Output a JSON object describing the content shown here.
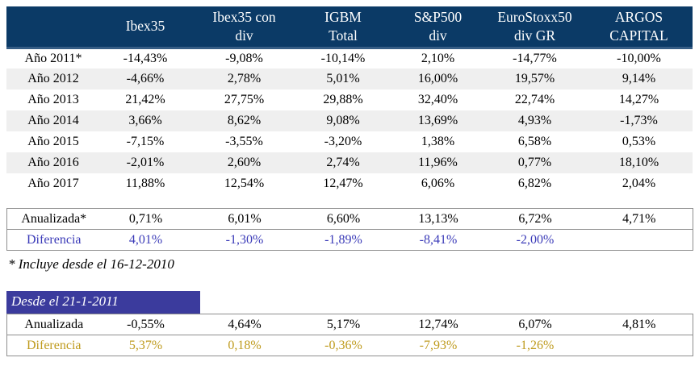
{
  "colors": {
    "header_bg": "#0b3a66",
    "header_edge": "#365d85",
    "row_alt_bg": "#efefef",
    "diferencia_blue": "#3a3ab8",
    "diferencia_gold": "#bf9b1e",
    "since_bar_bg": "#3b3b9d",
    "border_gray": "#8e8e8e"
  },
  "main_table": {
    "columns": [
      "",
      "Ibex35",
      "Ibex35 con\ndiv",
      "IGBM\nTotal",
      "S&P500\ndiv",
      "EuroStoxx50\ndiv GR",
      "ARGOS\nCAPITAL"
    ],
    "year_rows": [
      {
        "label": "Año 2011*",
        "values": [
          "-14,43%",
          "-9,08%",
          "-10,14%",
          "2,10%",
          "-14,77%",
          "-10,00%"
        ]
      },
      {
        "label": "Año 2012",
        "values": [
          "-4,66%",
          "2,78%",
          "5,01%",
          "16,00%",
          "19,57%",
          "9,14%"
        ]
      },
      {
        "label": "Año 2013",
        "values": [
          "21,42%",
          "27,75%",
          "29,88%",
          "32,40%",
          "22,74%",
          "14,27%"
        ]
      },
      {
        "label": "Año 2014",
        "values": [
          "3,66%",
          "8,62%",
          "9,08%",
          "13,69%",
          "4,93%",
          "-1,73%"
        ]
      },
      {
        "label": "Año 2015",
        "values": [
          "-7,15%",
          "-3,55%",
          "-3,20%",
          "1,38%",
          "6,58%",
          "0,53%"
        ]
      },
      {
        "label": "Año 2016",
        "values": [
          "-2,01%",
          "2,60%",
          "2,74%",
          "11,96%",
          "0,77%",
          "18,10%"
        ]
      },
      {
        "label": "Año 2017",
        "values": [
          "11,88%",
          "12,54%",
          "12,47%",
          "6,06%",
          "6,82%",
          "2,04%"
        ]
      }
    ],
    "summary_rows": [
      {
        "label": "Anualizada*",
        "style": "normal",
        "values": [
          "0,71%",
          "6,01%",
          "6,60%",
          "13,13%",
          "6,72%",
          "4,71%"
        ]
      },
      {
        "label": "Diferencia",
        "style": "blue",
        "values": [
          "4,01%",
          "-1,30%",
          "-1,89%",
          "-8,41%",
          "-2,00%",
          ""
        ]
      }
    ]
  },
  "footnote": "* Incluye desde el 16-12-2010",
  "since_block": {
    "title": "Desde el 21-1-2011",
    "rows": [
      {
        "label": "Anualizada",
        "style": "normal",
        "values": [
          "-0,55%",
          "4,64%",
          "5,17%",
          "12,74%",
          "6,07%",
          "4,81%"
        ]
      },
      {
        "label": "Diferencia",
        "style": "gold",
        "values": [
          "5,37%",
          "0,18%",
          "-0,36%",
          "-7,93%",
          "-1,26%",
          ""
        ]
      }
    ]
  }
}
